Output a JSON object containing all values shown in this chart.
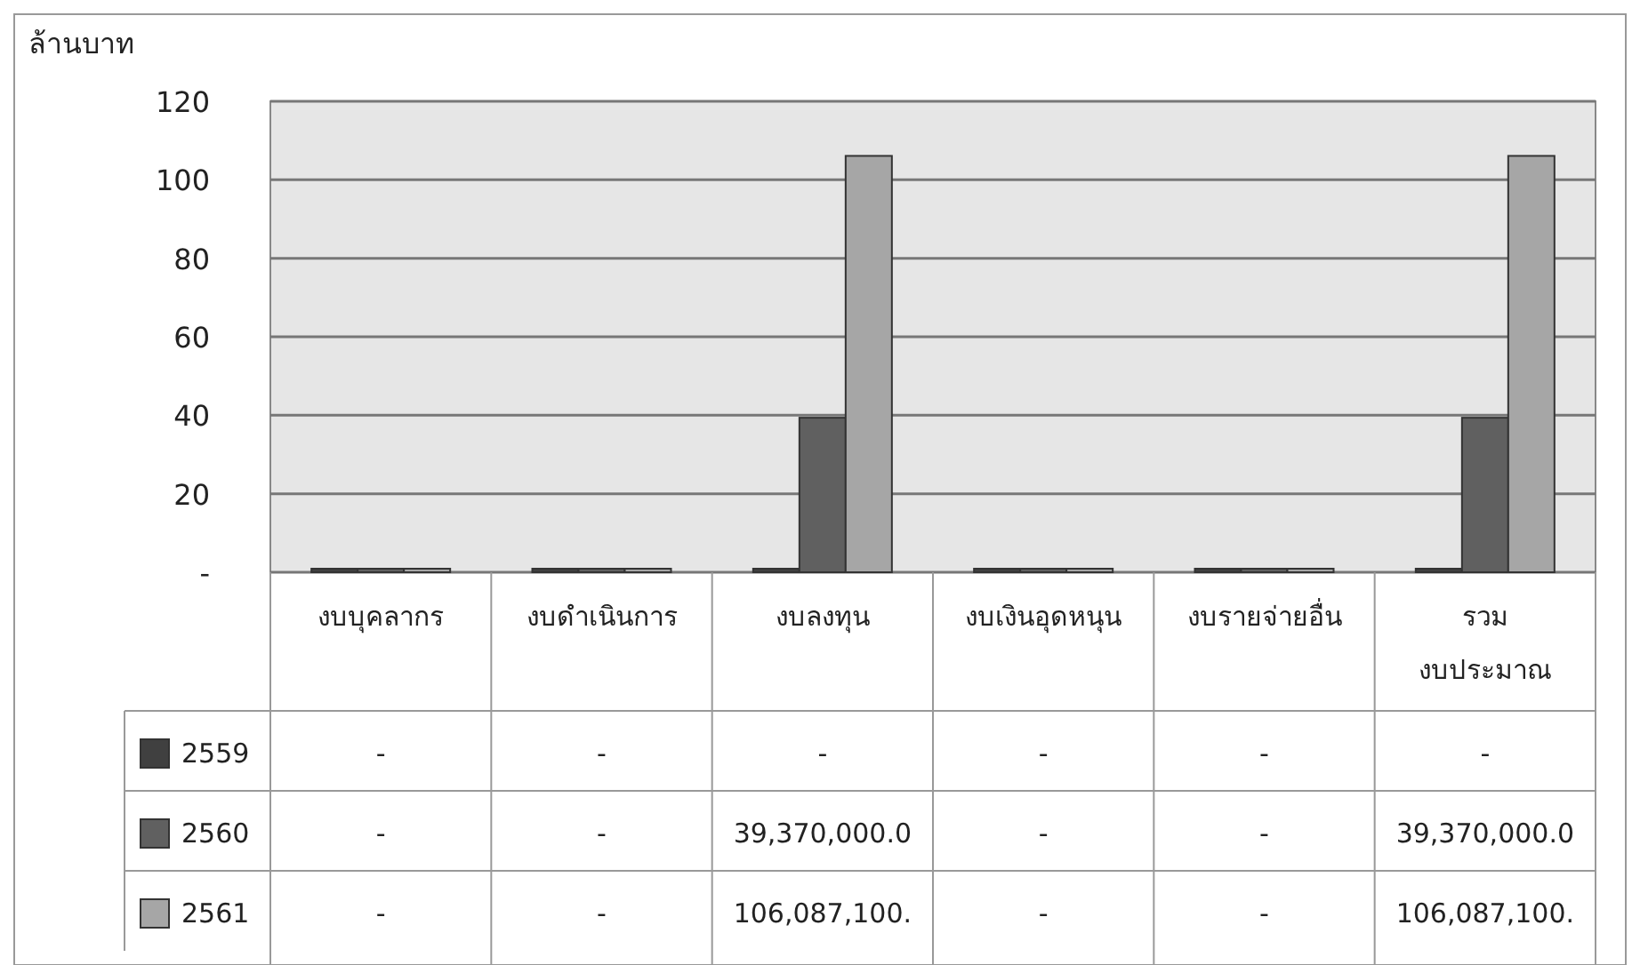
{
  "chart_data": {
    "type": "bar",
    "ylabel": "ล้านบาท",
    "categories": [
      "งบบุคลากร",
      "งบดำเนินการ",
      "งบลงทุน",
      "งบเงินอุดหนุน",
      "งบรายจ่ายอื่น",
      "รวม งบประมาณ"
    ],
    "series": [
      {
        "name": "2559",
        "color": "#404040",
        "values": [
          0,
          0,
          0,
          0,
          0,
          0
        ]
      },
      {
        "name": "2560",
        "color": "#606060",
        "values": [
          0,
          0,
          39.37,
          0,
          0,
          39.37
        ]
      },
      {
        "name": "2561",
        "color": "#a6a6a6",
        "values": [
          0,
          0,
          106.09,
          0,
          0,
          106.09
        ]
      }
    ],
    "annotations": [
      "-",
      "-",
      "-",
      "-",
      "-",
      "-",
      "-",
      "-",
      "39,370,000.0",
      "-",
      "-",
      "39,370,000.0",
      "-",
      "-",
      "106,087,100.",
      "-",
      "-",
      "106,087,100."
    ],
    "ylim": [
      0,
      120
    ],
    "yticks": [
      {
        "value": 0,
        "label": "-"
      },
      20,
      40,
      60,
      80,
      100,
      120
    ],
    "grid": "y",
    "legend": "bottom"
  }
}
